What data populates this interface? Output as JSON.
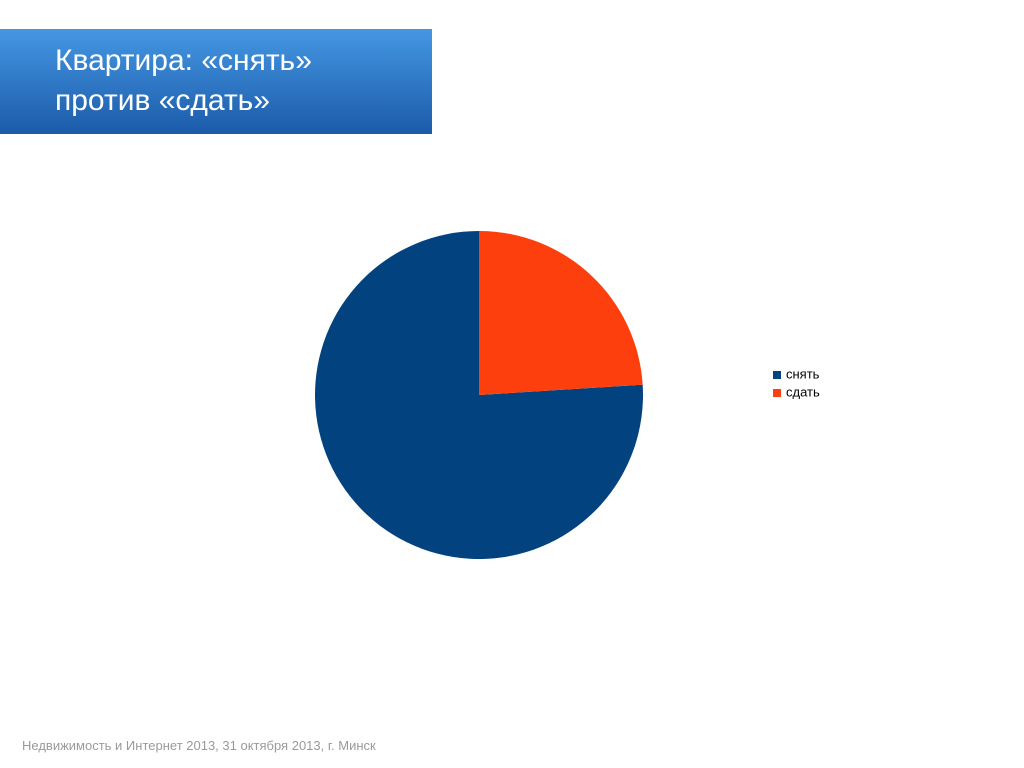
{
  "chart_data": {
    "type": "pie",
    "title": "Квартира: «снять» против «сдать»",
    "categories": [
      "снять",
      "сдать"
    ],
    "values": [
      76,
      24
    ],
    "colors": [
      "#02437f",
      "#fc3f0c"
    ]
  },
  "footer": "Недвижимость и Интернет 2013, 31 октября 2013, г. Минск"
}
